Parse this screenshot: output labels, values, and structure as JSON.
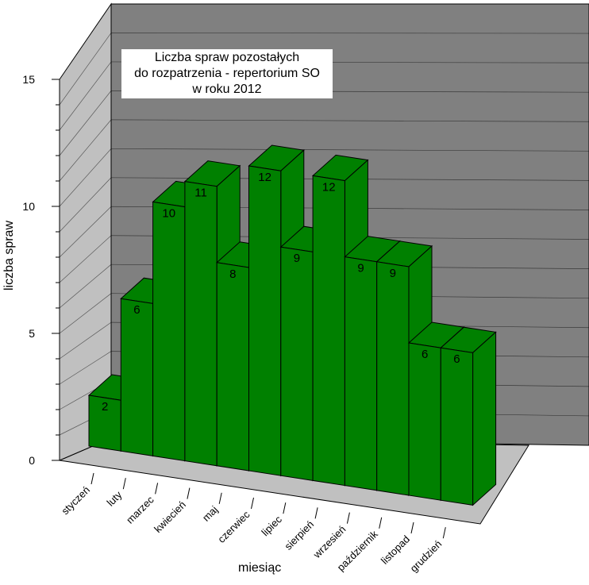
{
  "chart_data": {
    "type": "bar",
    "title_lines": [
      "Liczba spraw pozostałych",
      "do rozpatrzenia - repertorium SO",
      "w roku 2012"
    ],
    "xlabel": "miesiąc",
    "ylabel": "liczba spraw",
    "categories": [
      "styczeń",
      "luty",
      "marzec",
      "kwiecień",
      "maj",
      "czerwiec",
      "lipiec",
      "sierpień",
      "wrzesień",
      "październik",
      "listopad",
      "grudzień"
    ],
    "values": [
      2,
      6,
      10,
      11,
      8,
      12,
      9,
      12,
      9,
      9,
      6,
      6
    ],
    "ylim": [
      0,
      15
    ],
    "yticks": [
      0,
      5,
      10,
      15
    ],
    "grid": true,
    "colors": {
      "bar": "#008000",
      "back_wall": "#808080",
      "side_wall": "#c0c0c0",
      "floor": "#c0c0c0"
    }
  }
}
